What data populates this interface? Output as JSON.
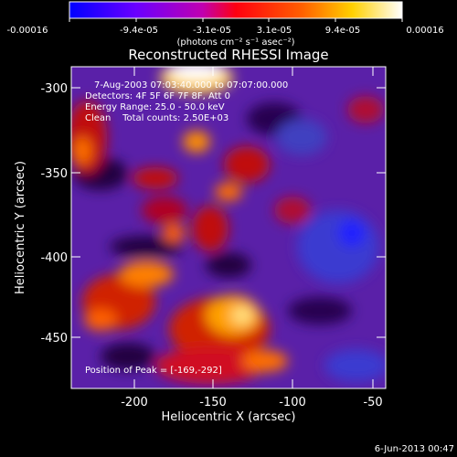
{
  "colorbar": {
    "tick_labels": [
      "-0.00016",
      "-9.4e-05",
      "-3.1e-05",
      "3.1e-05",
      "9.4e-05",
      "0.00016"
    ],
    "units_label": "(photons cm⁻² s⁻¹ asec⁻²)",
    "colors": [
      "#0000ff",
      "#7a00ff",
      "#d000a0",
      "#ff2000",
      "#ff8000",
      "#ffe000",
      "#ffffff"
    ]
  },
  "plot": {
    "title": "Reconstructed RHESSI Image",
    "info_lines": [
      "7-Aug-2003 07:03:40.000 to 07:07:00.000",
      "Detectors: 4F 5F 6F 7F 8F, Att 0",
      "Energy Range: 25.0 - 50.0 keV",
      "Clean    Total counts: 2.50E+03"
    ],
    "peak_label": "Position of Peak = [-169,-292]",
    "xlabel": "Heliocentric X (arcsec)",
    "ylabel": "Heliocentric Y (arcsec)",
    "x_ticks": [
      "-200",
      "-150",
      "-100",
      "-50"
    ],
    "y_ticks": [
      "-300",
      "-350",
      "-400",
      "-450"
    ],
    "x_range": [
      -240,
      -45
    ],
    "y_range": [
      -485,
      -290
    ]
  },
  "footer": {
    "timestamp": "6-Jun-2013 00:47"
  }
}
